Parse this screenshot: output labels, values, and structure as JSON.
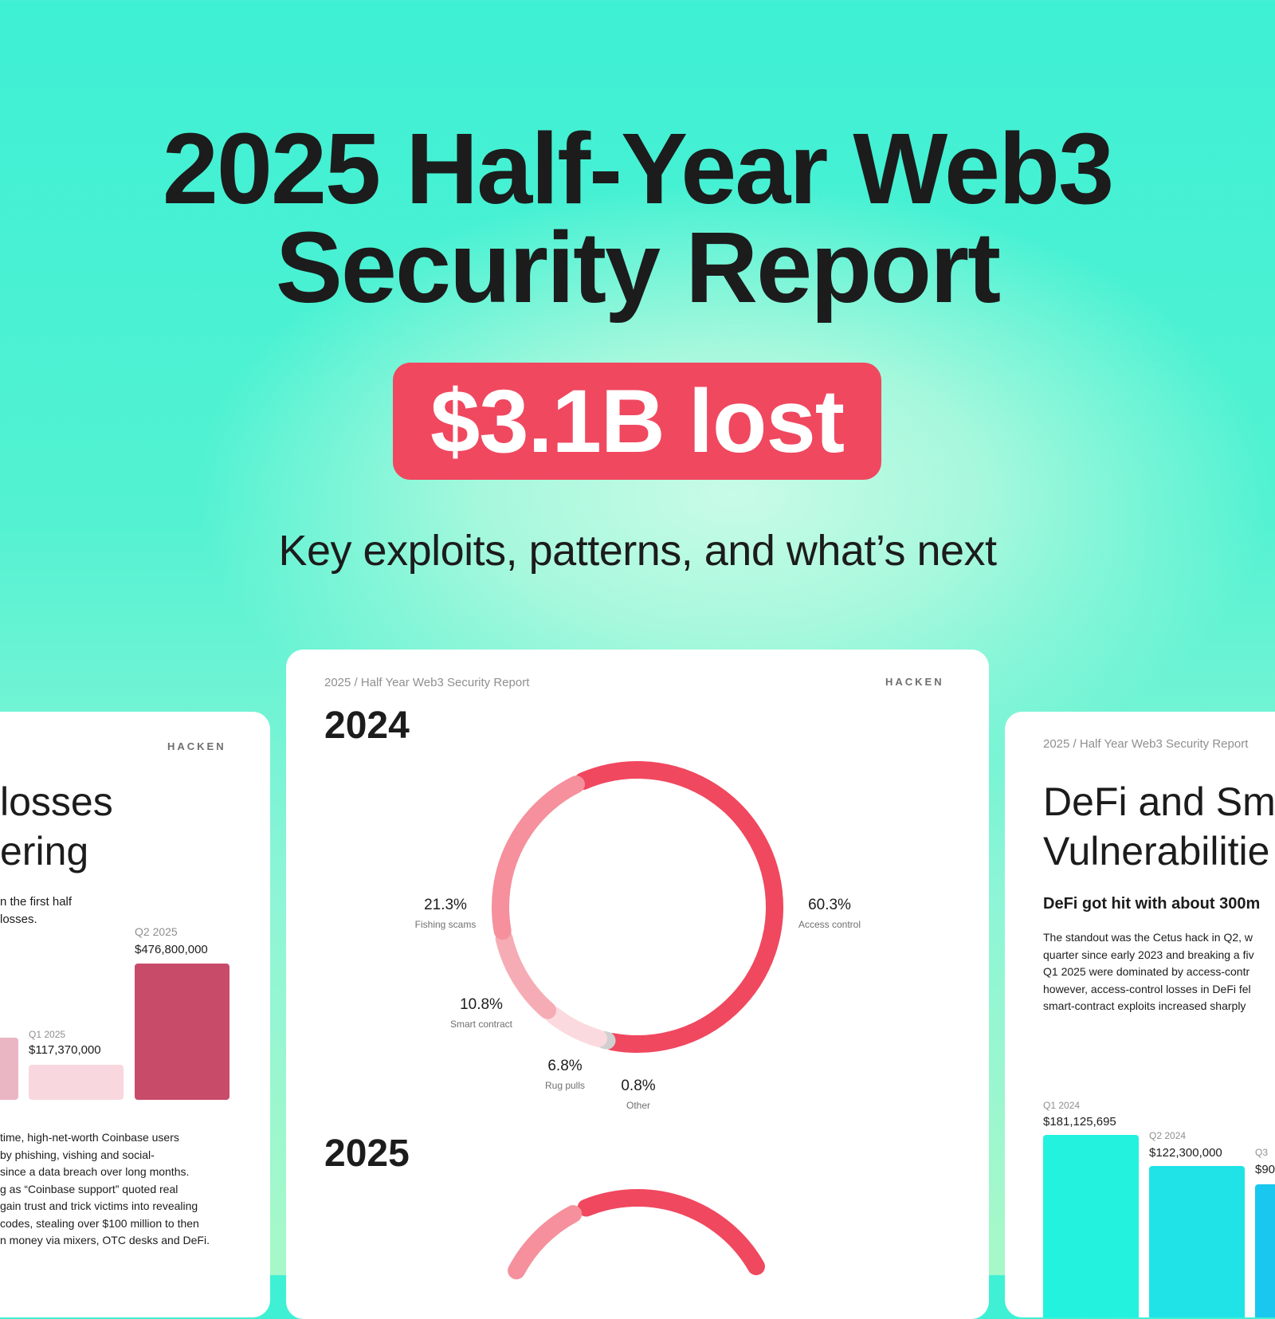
{
  "hero": {
    "title_line1": "2025 Half-Year Web3",
    "title_line2": "Security Report",
    "badge": "$3.1B lost",
    "subtitle": "Key exploits, patterns, and what’s next"
  },
  "brand": {
    "logo": "HACKEN"
  },
  "colors": {
    "accent_red": "#f0485f",
    "access_control": "#f0485f",
    "fishing_scams": "#f5909c",
    "smart_contract": "#f6acb5",
    "rug_pulls": "#fbdadf",
    "other": "#d0d0d0",
    "q1_left": "#f8d8de",
    "q2_left": "#c94b6a",
    "prev_left": "#ebb6c3",
    "teal_1": "#22f2de",
    "teal_2": "#1fe3e6",
    "teal_3": "#1ac7ee"
  },
  "center_card": {
    "header": "2025 / Half Year Web3 Security Report",
    "year_2024": "2024",
    "year_2025": "2025",
    "chart_data": {
      "type": "pie",
      "title": "2024",
      "slices": [
        {
          "label": "Access control",
          "value": 60.3,
          "display": "60.3%"
        },
        {
          "label": "Other",
          "value": 0.8,
          "display": "0.8%"
        },
        {
          "label": "Rug pulls",
          "value": 6.8,
          "display": "6.8%"
        },
        {
          "label": "Smart contract",
          "value": 10.8,
          "display": "10.8%"
        },
        {
          "label": "Fishing scams",
          "value": 21.3,
          "display": "21.3%"
        }
      ]
    }
  },
  "left_card": {
    "heading_line1": "losses",
    "heading_line2": "ering",
    "intro_line1": "n the first half",
    "intro_line2": "losses.",
    "chart_data": {
      "type": "bar",
      "categories": [
        "",
        "Q1 2025",
        "Q2 2025"
      ],
      "values": [
        null,
        117370000,
        476800000
      ],
      "labels": [
        "",
        "$117,370,000",
        "$476,800,000"
      ]
    },
    "body_lines": [
      "time, high-net-worth Coinbase users",
      "by phishing, vishing and social-",
      "since a data breach over long months.",
      "g as “Coinbase support” quoted real",
      "gain trust and trick victims into revealing",
      "codes, stealing over $100 million to then",
      "n money via mixers, OTC desks and DeFi."
    ]
  },
  "right_card": {
    "header": "2025 / Half Year Web3 Security Report",
    "heading_line1": "DeFi and Sm",
    "heading_line2": "Vulnerabilitie",
    "subheading": "DeFi got hit with about 300m",
    "body_lines": [
      "The standout was the Cetus hack in Q2, w",
      "quarter since early 2023 and breaking a fiv",
      "Q1 2025 were dominated by access-contr",
      "however, access-control losses in DeFi fel",
      "smart-contract exploits increased sharply"
    ],
    "chart_data": {
      "type": "bar",
      "categories": [
        "Q1 2024",
        "Q2 2024",
        "Q3"
      ],
      "values": [
        181125695,
        122300000,
        null
      ],
      "labels": [
        "$181,125,695",
        "$122,300,000",
        "$90"
      ]
    }
  }
}
